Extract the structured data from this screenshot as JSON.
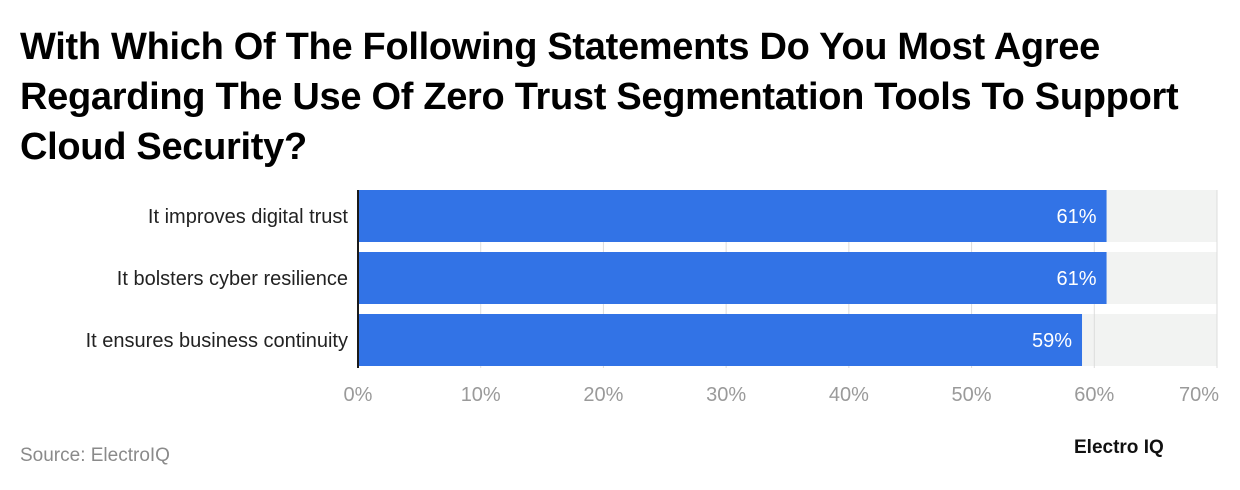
{
  "title": "With Which Of The Following Statements Do You Most Agree Regarding The Use Of Zero Trust Segmentation Tools To Support Cloud Security?",
  "source": "Source: ElectroIQ",
  "brand": "Electro IQ",
  "colors": {
    "bar": "#3273e6",
    "track": "#f2f3f2",
    "grid": "#dcdcdc",
    "axis": "#1a1a1a",
    "tick_label": "#9a9a9a",
    "bar_label": "#ffffff"
  },
  "chart_data": {
    "type": "bar",
    "orientation": "horizontal",
    "categories": [
      "It improves digital trust",
      "It bolsters cyber resilience",
      "It ensures business continuity"
    ],
    "values": [
      61,
      61,
      59
    ],
    "value_labels": [
      "61%",
      "61%",
      "59%"
    ],
    "xlim": [
      0,
      70
    ],
    "xticks": [
      0,
      10,
      20,
      30,
      40,
      50,
      60,
      70
    ],
    "xtick_labels": [
      "0%",
      "10%",
      "20%",
      "30%",
      "40%",
      "50%",
      "60%",
      "70%"
    ],
    "grid": true,
    "legend": false
  }
}
